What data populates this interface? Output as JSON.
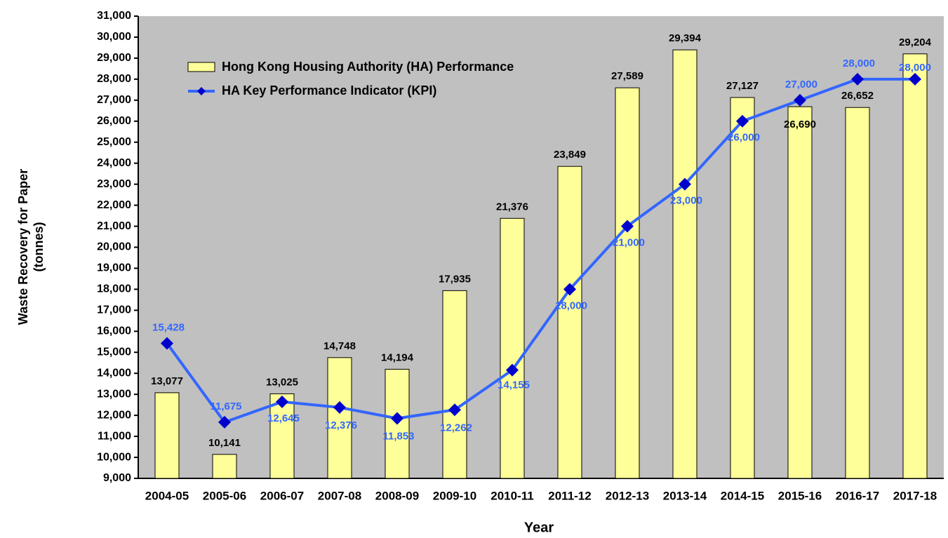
{
  "chart_data": {
    "type": "bar",
    "x_label": "Year",
    "y_label": [
      "Waste Recovery for Paper",
      "(tonnes)"
    ],
    "categories": [
      "2004-05",
      "2005-06",
      "2006-07",
      "2007-08",
      "2008-09",
      "2009-10",
      "2010-11",
      "2011-12",
      "2012-13",
      "2013-14",
      "2014-15",
      "2015-16",
      "2016-17",
      "2017-18"
    ],
    "series": [
      {
        "name": "Hong Kong Housing Authority (HA) Performance",
        "type": "bar",
        "color": "#ffff99",
        "values": [
          13077,
          10141,
          13025,
          14748,
          14194,
          17935,
          21376,
          23849,
          27589,
          29394,
          27127,
          26690,
          26652,
          29204
        ],
        "value_labels": [
          "13,077",
          "10,141",
          "13,025",
          "14,748",
          "14,194",
          "17,935",
          "21,376",
          "23,849",
          "27,589",
          "29,394",
          "27,127",
          "26,690",
          "26,652",
          "29,204"
        ]
      },
      {
        "name": "HA Key Performance Indicator (KPI)",
        "type": "line",
        "color": "#3366ff",
        "marker_color": "#0000cc",
        "values": [
          15428,
          11675,
          12645,
          12376,
          11853,
          12262,
          14155,
          18000,
          21000,
          23000,
          26000,
          27000,
          28000,
          28000
        ],
        "value_labels": [
          "15,428",
          "11,675",
          "12,645",
          "12,376",
          "11,853",
          "12,262",
          "14,155",
          "18,000",
          "21,000",
          "23,000",
          "26,000",
          "27,000",
          "28,000",
          "28,000"
        ]
      }
    ],
    "ylim": [
      9000,
      31000
    ],
    "yticks": [
      {
        "value": 9000,
        "label": "9,000"
      },
      {
        "value": 10000,
        "label": "10,000"
      },
      {
        "value": 11000,
        "label": "11,000"
      },
      {
        "value": 12000,
        "label": "12,000"
      },
      {
        "value": 13000,
        "label": "13,000"
      },
      {
        "value": 14000,
        "label": "14,000"
      },
      {
        "value": 15000,
        "label": "15,000"
      },
      {
        "value": 16000,
        "label": "16,000"
      },
      {
        "value": 17000,
        "label": "17,000"
      },
      {
        "value": 18000,
        "label": "18,000"
      },
      {
        "value": 19000,
        "label": "19,000"
      },
      {
        "value": 20000,
        "label": "20,000"
      },
      {
        "value": 21000,
        "label": "21,000"
      },
      {
        "value": 22000,
        "label": "22,000"
      },
      {
        "value": 23000,
        "label": "23,000"
      },
      {
        "value": 24000,
        "label": "24,000"
      },
      {
        "value": 25000,
        "label": "25,000"
      },
      {
        "value": 26000,
        "label": "26,000"
      },
      {
        "value": 27000,
        "label": "27,000"
      },
      {
        "value": 28000,
        "label": "28,000"
      },
      {
        "value": 29000,
        "label": "29,000"
      },
      {
        "value": 30000,
        "label": "30,000"
      },
      {
        "value": 31000,
        "label": "31,000"
      }
    ],
    "plot_background": "#c0c0c0"
  }
}
